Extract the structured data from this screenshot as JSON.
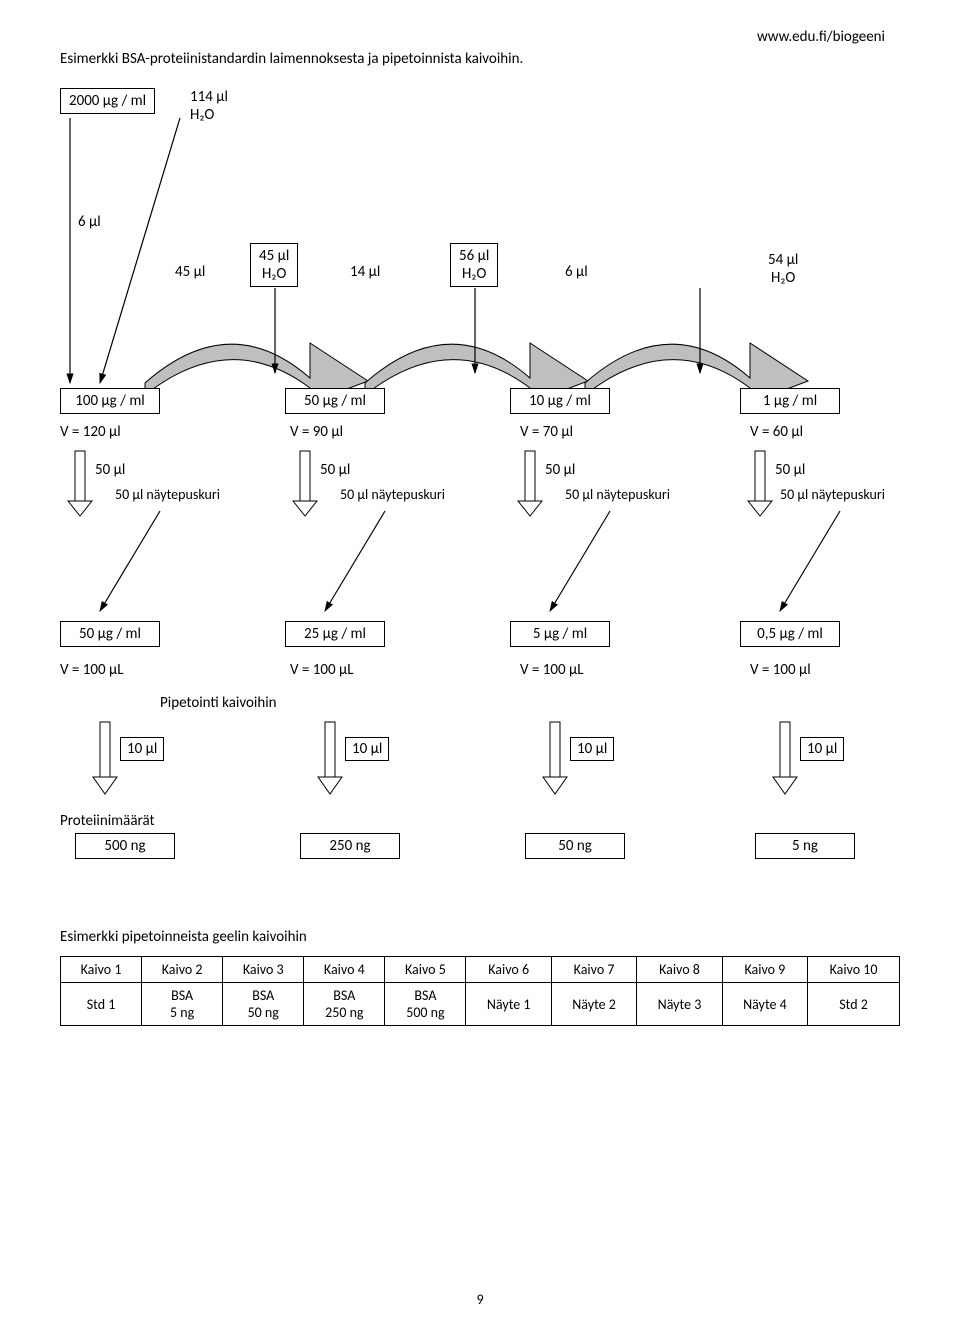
{
  "url": "www.edu.fi/biogeeni",
  "title": "Esimerkki BSA-proteiinistandardin laimennoksesta ja pipetoinnista kaivoihin.",
  "stock": {
    "conc": "2000 µg / ml",
    "add_h2o": "114 µl\nH₂O",
    "take": "6 µl"
  },
  "transfers": [
    {
      "take": "45 µl",
      "h2o": "45 µl\nH₂O"
    },
    {
      "take": "14 µl",
      "h2o": "56 µl\nH₂O"
    },
    {
      "take": "6 µl",
      "h2o": "54 µl\nH₂O"
    }
  ],
  "dilrow1": [
    {
      "conc": "100 µg / ml",
      "vol": "V = 120 µl"
    },
    {
      "conc": "50 µg / ml",
      "vol": "V = 90 µl"
    },
    {
      "conc": "10 µg / ml",
      "vol": "V = 70 µl"
    },
    {
      "conc": "1 µg / ml",
      "vol": "V = 60 µl"
    }
  ],
  "split": {
    "take": "50 µl",
    "buffer": "50 µl näytepuskuri"
  },
  "dilrow2": [
    {
      "conc": "50 µg / ml",
      "vol": "V = 100 µL"
    },
    {
      "conc": "25 µg / ml",
      "vol": "V = 100 µL"
    },
    {
      "conc": "5 µg / ml",
      "vol": "V = 100 µL"
    },
    {
      "conc": "0,5 µg / ml",
      "vol": "V = 100 µl"
    }
  ],
  "pipetointi_label": "Pipetointi kaivoihin",
  "pipette_vol": "10 µl",
  "protein_label": "Proteiinimäärät",
  "proteins": [
    "500 ng",
    "250 ng",
    "50 ng",
    "5 ng"
  ],
  "table_title": "Esimerkki pipetoinneista geelin kaivoihin",
  "table": {
    "headers": [
      "Kaivo 1",
      "Kaivo 2",
      "Kaivo 3",
      "Kaivo 4",
      "Kaivo 5",
      "Kaivo 6",
      "Kaivo 7",
      "Kaivo 8",
      "Kaivo 9",
      "Kaivo 10"
    ],
    "row": [
      "Std 1",
      "BSA\n5 ng",
      "BSA\n50 ng",
      "BSA\n250 ng",
      "BSA\n500 ng",
      "Näyte 1",
      "Näyte 2",
      "Näyte 3",
      "Näyte 4",
      "Std 2"
    ]
  },
  "page_number": "9",
  "style": {
    "arrow_fill": "#bfbfbf",
    "arrow_stroke": "#000000",
    "box_border": "#000000"
  }
}
